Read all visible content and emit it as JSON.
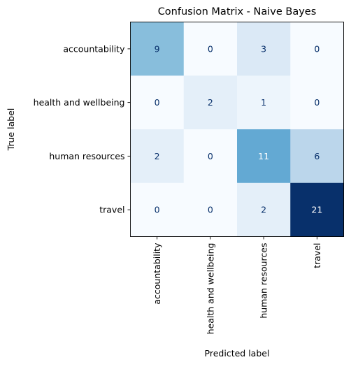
{
  "chart_data": {
    "type": "heatmap",
    "title": "Confusion Matrix - Naive Bayes",
    "xlabel": "Predicted label",
    "ylabel": "True label",
    "x_categories": [
      "accountability",
      "health and wellbeing",
      "human resources",
      "travel"
    ],
    "y_categories": [
      "accountability",
      "health and wellbeing",
      "human resources",
      "travel"
    ],
    "matrix": [
      [
        9,
        0,
        3,
        0
      ],
      [
        0,
        2,
        1,
        0
      ],
      [
        2,
        0,
        11,
        6
      ],
      [
        0,
        0,
        2,
        21
      ]
    ],
    "colormap": "Blues",
    "color_range": [
      0,
      21
    ],
    "colorbar": false,
    "grid": false
  }
}
